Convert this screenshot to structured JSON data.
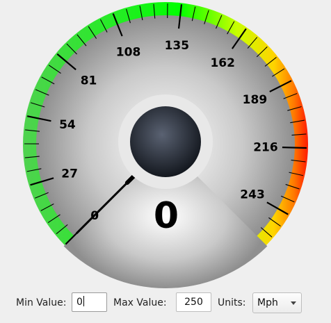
{
  "gauge": {
    "value": "0",
    "ticks": [
      {
        "label": "0"
      },
      {
        "label": "27"
      },
      {
        "label": "54"
      },
      {
        "label": "81"
      },
      {
        "label": "108"
      },
      {
        "label": "135"
      },
      {
        "label": "162"
      },
      {
        "label": "189"
      },
      {
        "label": "216"
      },
      {
        "label": "243"
      }
    ],
    "needle_value": 0,
    "min": 0,
    "max": 250,
    "colors": {
      "low": "#33e633",
      "mid": "#00ff00",
      "warn": "#ffff00",
      "high": "#ff6600",
      "max": "#ff0000",
      "face_center": "#ffffff",
      "face_edge": "#8d8d8d",
      "hub": "#2a3040"
    }
  },
  "controls": {
    "min_label": "Min Value:",
    "min_value": "0",
    "max_label": "Max Value:",
    "max_value": "250",
    "units_label": "Units:",
    "units_value": "Mph"
  }
}
